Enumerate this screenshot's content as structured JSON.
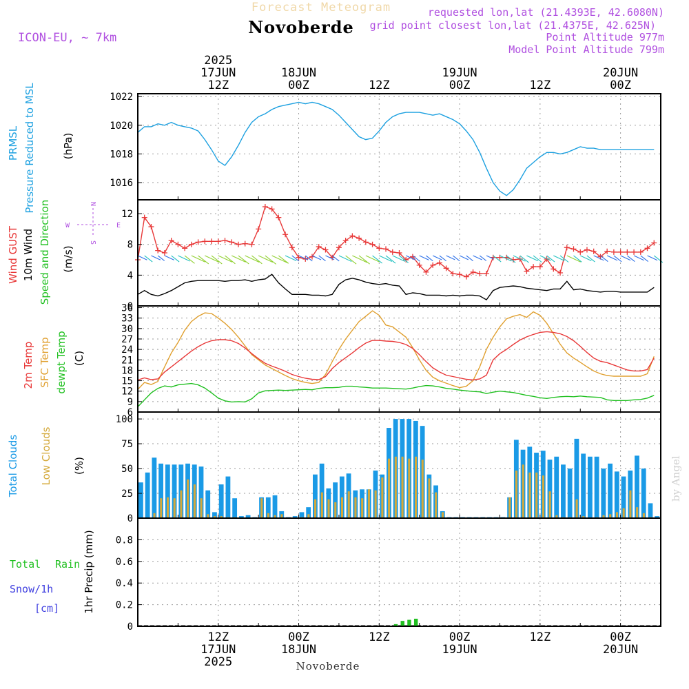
{
  "header": {
    "model": "ICON-EU, ~ 7km",
    "product": "Forecast Meteogram",
    "location": "Novoberde",
    "requested": "requested lon,lat (21.4393E, 42.6080N)",
    "gridpoint": "grid point closest lon,lat (21.4375E, 42.625N)",
    "point_alt": "Point Altitude 977m",
    "model_alt": "Model Point Altitude 799m",
    "watermark": "by Angel",
    "footer_location": "Novoberde"
  },
  "time_axis": {
    "start_hour": 0,
    "end_hour": 78,
    "top_labels": [
      {
        "h": 12,
        "lines": [
          "2025",
          "17JUN",
          "12Z"
        ]
      },
      {
        "h": 24,
        "lines": [
          "18JUN",
          "00Z"
        ]
      },
      {
        "h": 36,
        "lines": [
          "12Z"
        ]
      },
      {
        "h": 48,
        "lines": [
          "19JUN",
          "00Z"
        ]
      },
      {
        "h": 60,
        "lines": [
          "12Z"
        ]
      },
      {
        "h": 72,
        "lines": [
          "20JUN",
          "00Z"
        ]
      }
    ],
    "bottom_labels": [
      {
        "h": 12,
        "lines": [
          "12Z",
          "17JUN",
          "2025"
        ]
      },
      {
        "h": 24,
        "lines": [
          "00Z",
          "18JUN"
        ]
      },
      {
        "h": 36,
        "lines": [
          "12Z"
        ]
      },
      {
        "h": 48,
        "lines": [
          "00Z",
          "19JUN"
        ]
      },
      {
        "h": 60,
        "lines": [
          "12Z"
        ]
      },
      {
        "h": 72,
        "lines": [
          "00Z",
          "20JUN"
        ]
      }
    ]
  },
  "colors": {
    "pressure": "#1ca0e0",
    "gust": "#e83838",
    "wind": "#000000",
    "temp2m": "#e83838",
    "sfc": "#e0a030",
    "dew": "#20c020",
    "total_cloud": "#1a9ae6",
    "low_cloud": "#d4a93a",
    "rain": "#20c020",
    "snow": "#4040e0",
    "label_purple": "#b050e0"
  },
  "panels": {
    "pressure": {
      "label1": "PRMSL",
      "label2": "Pressure Reduced to MSL",
      "unit": "(hPa)"
    },
    "wind": {
      "label_gust": "Wind GUST",
      "label_wind": "10m Wind",
      "label_dir": "Speed and Direction",
      "unit": "(m/s)",
      "compass_n": "N",
      "compass_s": "S",
      "compass_w": "W",
      "compass_e": "E"
    },
    "temp": {
      "label_2m": "2m Temp",
      "label_sfc": "SFC Temp",
      "label_dew": "dewpt Temp",
      "unit": "(C)"
    },
    "cloud": {
      "label_total": "Total Clouds",
      "label_low": "Low Clouds",
      "unit": "(%)"
    },
    "precip": {
      "label_total": "Total",
      "label_rain": "Rain",
      "label_snow": "Snow/1h",
      "label_cm": "[cm]",
      "label_axis": "1hr Precip (mm)"
    }
  },
  "chart_data": [
    {
      "type": "line",
      "title": "Pressure Reduced to MSL",
      "ylabel": "PRMSL (hPa)",
      "ylim": [
        1014.8,
        1022.2
      ],
      "yticks": [
        1016,
        1018,
        1020,
        1022
      ],
      "x": [
        0,
        1,
        2,
        3,
        4,
        5,
        6,
        7,
        8,
        9,
        10,
        11,
        12,
        13,
        14,
        15,
        16,
        17,
        18,
        19,
        20,
        21,
        22,
        23,
        24,
        25,
        26,
        27,
        28,
        29,
        30,
        31,
        32,
        33,
        34,
        35,
        36,
        37,
        38,
        39,
        40,
        41,
        42,
        43,
        44,
        45,
        46,
        47,
        48,
        49,
        50,
        51,
        52,
        53,
        54,
        55,
        56,
        57,
        58,
        59,
        60,
        61,
        62,
        63,
        64,
        65,
        66,
        67,
        68,
        69,
        70,
        71,
        72,
        73,
        74,
        75,
        76,
        77
      ],
      "series": [
        {
          "name": "PRMSL",
          "values": [
            1019.5,
            1019.9,
            1019.9,
            1020.1,
            1020.0,
            1020.2,
            1020.0,
            1019.9,
            1019.8,
            1019.6,
            1019.0,
            1018.3,
            1017.5,
            1017.2,
            1017.8,
            1018.6,
            1019.5,
            1020.2,
            1020.6,
            1020.8,
            1021.1,
            1021.3,
            1021.4,
            1021.5,
            1021.6,
            1021.5,
            1021.6,
            1021.5,
            1021.3,
            1021.1,
            1020.7,
            1020.2,
            1019.7,
            1019.2,
            1019.0,
            1019.1,
            1019.6,
            1020.2,
            1020.6,
            1020.8,
            1020.9,
            1020.9,
            1020.9,
            1020.8,
            1020.7,
            1020.8,
            1020.6,
            1020.4,
            1020.1,
            1019.6,
            1019.0,
            1018.1,
            1017.0,
            1016.0,
            1015.4,
            1015.1,
            1015.5,
            1016.2,
            1017.0,
            1017.4,
            1017.8,
            1018.1,
            1018.1,
            1018.0,
            1018.1,
            1018.3,
            1018.5,
            1018.4,
            1018.4,
            1018.3,
            1018.3,
            1018.3,
            1018.3,
            1018.3,
            1018.3,
            1018.3,
            1018.3,
            1018.3
          ]
        }
      ]
    },
    {
      "type": "line",
      "title": "Wind GUST / 10m Wind Speed and Direction",
      "ylabel": "(m/s)",
      "ylim": [
        0,
        13.8
      ],
      "yticks": [
        0,
        4,
        8,
        12
      ],
      "x": [
        0,
        1,
        2,
        3,
        4,
        5,
        6,
        7,
        8,
        9,
        10,
        11,
        12,
        13,
        14,
        15,
        16,
        17,
        18,
        19,
        20,
        21,
        22,
        23,
        24,
        25,
        26,
        27,
        28,
        29,
        30,
        31,
        32,
        33,
        34,
        35,
        36,
        37,
        38,
        39,
        40,
        41,
        42,
        43,
        44,
        45,
        46,
        47,
        48,
        49,
        50,
        51,
        52,
        53,
        54,
        55,
        56,
        57,
        58,
        59,
        60,
        61,
        62,
        63,
        64,
        65,
        66,
        67,
        68,
        69,
        70,
        71,
        72,
        73,
        74,
        75,
        76,
        77
      ],
      "series": [
        {
          "name": "Wind GUST",
          "values": [
            6.0,
            11.5,
            10.3,
            7.2,
            6.9,
            8.5,
            8.0,
            7.5,
            8.0,
            8.3,
            8.4,
            8.4,
            8.4,
            8.5,
            8.3,
            8.0,
            8.1,
            8.0,
            10.0,
            12.9,
            12.6,
            11.5,
            9.3,
            7.6,
            6.3,
            6.1,
            6.4,
            7.7,
            7.3,
            6.3,
            7.6,
            8.5,
            9.1,
            8.8,
            8.3,
            8.0,
            7.5,
            7.4,
            7.0,
            6.9,
            6.0,
            6.4,
            5.3,
            4.4,
            5.3,
            5.6,
            4.9,
            4.2,
            4.1,
            3.8,
            4.4,
            4.2,
            4.2,
            6.3,
            6.3,
            6.3,
            6.0,
            6.1,
            4.5,
            5.1,
            5.1,
            6.1,
            4.8,
            4.3,
            7.6,
            7.4,
            7.0,
            7.3,
            7.1,
            6.4,
            7.1,
            7.0,
            7.0,
            7.0,
            7.0,
            7.0,
            7.5,
            8.2
          ]
        },
        {
          "name": "10m Wind",
          "values": [
            1.5,
            2.0,
            1.5,
            1.3,
            1.6,
            2.0,
            2.5,
            3.0,
            3.2,
            3.3,
            3.3,
            3.3,
            3.3,
            3.2,
            3.3,
            3.3,
            3.4,
            3.2,
            3.4,
            3.5,
            4.1,
            3.0,
            2.2,
            1.5,
            1.5,
            1.5,
            1.4,
            1.4,
            1.3,
            1.5,
            2.8,
            3.4,
            3.6,
            3.4,
            3.1,
            2.9,
            2.8,
            2.9,
            2.7,
            2.6,
            1.5,
            1.7,
            1.6,
            1.4,
            1.4,
            1.4,
            1.3,
            1.4,
            1.3,
            1.4,
            1.4,
            1.3,
            0.8,
            2.0,
            2.4,
            2.5,
            2.6,
            2.5,
            2.3,
            2.2,
            2.1,
            2.0,
            2.2,
            2.2,
            3.2,
            2.1,
            2.2,
            2.0,
            1.9,
            1.8,
            1.9,
            1.9,
            1.8,
            1.8,
            1.8,
            1.8,
            1.8,
            2.4
          ]
        }
      ]
    },
    {
      "type": "line",
      "title": "2m Temp / SFC Temp / dewpt Temp",
      "ylabel": "(C)",
      "ylim": [
        6,
        36.5
      ],
      "yticks": [
        6,
        9,
        12,
        15,
        18,
        21,
        24,
        27,
        30,
        33,
        36
      ],
      "x": [
        0,
        1,
        2,
        3,
        4,
        5,
        6,
        7,
        8,
        9,
        10,
        11,
        12,
        13,
        14,
        15,
        16,
        17,
        18,
        19,
        20,
        21,
        22,
        23,
        24,
        25,
        26,
        27,
        28,
        29,
        30,
        31,
        32,
        33,
        34,
        35,
        36,
        37,
        38,
        39,
        40,
        41,
        42,
        43,
        44,
        45,
        46,
        47,
        48,
        49,
        50,
        51,
        52,
        53,
        54,
        55,
        56,
        57,
        58,
        59,
        60,
        61,
        62,
        63,
        64,
        65,
        66,
        67,
        68,
        69,
        70,
        71,
        72,
        73,
        74,
        75,
        76,
        77
      ],
      "series": [
        {
          "name": "2m Temp",
          "values": [
            15.2,
            15.8,
            15.3,
            15.5,
            17.5,
            19.0,
            20.5,
            22.0,
            23.5,
            24.8,
            25.8,
            26.5,
            26.8,
            26.8,
            26.5,
            25.7,
            24.4,
            22.8,
            21.3,
            20.0,
            19.2,
            18.5,
            17.7,
            16.8,
            16.2,
            15.7,
            15.4,
            15.3,
            16.2,
            18.5,
            20.2,
            21.6,
            23.0,
            24.5,
            25.8,
            26.6,
            26.6,
            26.4,
            26.3,
            26.0,
            25.4,
            24.3,
            22.5,
            20.5,
            18.7,
            17.5,
            16.6,
            16.2,
            15.8,
            15.4,
            15.2,
            15.5,
            16.6,
            21.0,
            22.8,
            24.0,
            25.4,
            26.7,
            27.6,
            28.3,
            28.9,
            29.1,
            28.9,
            28.5,
            27.7,
            26.5,
            24.9,
            23.1,
            21.5,
            20.6,
            20.2,
            19.5,
            18.8,
            18.1,
            17.8,
            17.8,
            18.2,
            21.5
          ]
        },
        {
          "name": "SFC Temp",
          "values": [
            12.5,
            14.5,
            13.9,
            14.8,
            19.0,
            23.0,
            26.0,
            29.5,
            32.0,
            33.5,
            34.5,
            34.3,
            33.0,
            31.5,
            29.7,
            27.5,
            25.0,
            22.5,
            21.0,
            19.5,
            18.5,
            17.5,
            16.5,
            15.6,
            15.0,
            14.5,
            14.2,
            14.5,
            16.8,
            20.5,
            24.0,
            27.0,
            29.5,
            32.0,
            33.5,
            35.1,
            33.8,
            31.0,
            30.5,
            29.0,
            27.5,
            24.5,
            21.0,
            18.0,
            16.0,
            15.0,
            14.3,
            13.6,
            13.0,
            13.4,
            15.0,
            19.0,
            24.0,
            27.5,
            30.5,
            32.8,
            33.5,
            34.0,
            33.2,
            34.8,
            33.8,
            31.5,
            28.5,
            25.5,
            23.0,
            21.5,
            20.3,
            19.0,
            17.8,
            17.0,
            16.5,
            16.3,
            16.3,
            16.3,
            16.3,
            16.3,
            17.0,
            22.0
          ]
        },
        {
          "name": "dewpt Temp",
          "values": [
            7.5,
            9.5,
            11.5,
            12.8,
            13.5,
            13.2,
            13.8,
            14.0,
            14.2,
            13.8,
            12.9,
            11.5,
            10.0,
            9.2,
            8.9,
            9.0,
            8.9,
            9.8,
            11.5,
            12.1,
            12.2,
            12.3,
            12.2,
            12.3,
            12.4,
            12.5,
            12.4,
            12.8,
            13.0,
            13.0,
            13.1,
            13.4,
            13.4,
            13.2,
            13.1,
            12.9,
            12.9,
            12.9,
            12.8,
            12.7,
            12.6,
            12.9,
            13.3,
            13.6,
            13.5,
            13.2,
            12.8,
            12.6,
            12.3,
            12.1,
            11.9,
            11.8,
            11.3,
            11.7,
            12.0,
            11.8,
            11.6,
            11.2,
            10.8,
            10.5,
            10.1,
            9.9,
            10.2,
            10.4,
            10.5,
            10.4,
            10.6,
            10.4,
            10.3,
            10.2,
            9.5,
            9.3,
            9.3,
            9.3,
            9.5,
            9.6,
            10.0,
            10.8
          ]
        }
      ]
    },
    {
      "type": "bar",
      "title": "Total Clouds / Low Clouds",
      "ylabel": "(%)",
      "ylim": [
        0,
        107
      ],
      "yticks": [
        0,
        25,
        50,
        75,
        100
      ],
      "x": [
        0,
        1,
        2,
        3,
        4,
        5,
        6,
        7,
        8,
        9,
        10,
        11,
        12,
        13,
        14,
        15,
        16,
        17,
        18,
        19,
        20,
        21,
        22,
        23,
        24,
        25,
        26,
        27,
        28,
        29,
        30,
        31,
        32,
        33,
        34,
        35,
        36,
        37,
        38,
        39,
        40,
        41,
        42,
        43,
        44,
        45,
        46,
        47,
        48,
        49,
        50,
        51,
        52,
        53,
        54,
        55,
        56,
        57,
        58,
        59,
        60,
        61,
        62,
        63,
        64,
        65,
        66,
        67,
        68,
        69,
        70,
        71,
        72,
        73,
        74,
        75,
        76,
        77
      ],
      "series": [
        {
          "name": "Total Clouds",
          "values": [
            36,
            46,
            61,
            55,
            54,
            54,
            54,
            55,
            54,
            52,
            28,
            6,
            34,
            42,
            20,
            2,
            3,
            1,
            21,
            21,
            23,
            7,
            1,
            2,
            6,
            11,
            44,
            55,
            30,
            36,
            42,
            45,
            28,
            29,
            29,
            48,
            44,
            91,
            100,
            100,
            100,
            98,
            93,
            44,
            33,
            7,
            1,
            1,
            1,
            1,
            1,
            1,
            1,
            1,
            1,
            21,
            79,
            69,
            72,
            66,
            68,
            59,
            62,
            54,
            50,
            80,
            65,
            62,
            62,
            50,
            55,
            47,
            42,
            48,
            63,
            50,
            15,
            2
          ]
        },
        {
          "name": "Low Clouds",
          "values": [
            0,
            0,
            5,
            20,
            21,
            20,
            28,
            39,
            34,
            20,
            4,
            2,
            2,
            1,
            1,
            0,
            0,
            0,
            20,
            5,
            3,
            4,
            0,
            0,
            1,
            4,
            19,
            26,
            19,
            16,
            21,
            27,
            21,
            20,
            29,
            28,
            41,
            60,
            62,
            62,
            60,
            62,
            59,
            40,
            26,
            6,
            0,
            0,
            0,
            0,
            0,
            0,
            0,
            0,
            0,
            21,
            48,
            54,
            46,
            46,
            43,
            27,
            3,
            1,
            1,
            19,
            2,
            0,
            1,
            3,
            4,
            6,
            10,
            28,
            11,
            5,
            1,
            0
          ]
        }
      ]
    },
    {
      "type": "bar",
      "title": "1hr Precip",
      "ylabel": "1hr Precip (mm)",
      "ylim": [
        0,
        1.0
      ],
      "yticks": [
        0,
        0.2,
        0.4,
        0.6,
        0.8
      ],
      "x": [
        38,
        39,
        40,
        41
      ],
      "series": [
        {
          "name": "Total Rain",
          "values": [
            0.02,
            0.05,
            0.06,
            0.07
          ]
        },
        {
          "name": "Snow/1h",
          "values": [
            0,
            0,
            0,
            0
          ]
        }
      ]
    }
  ]
}
